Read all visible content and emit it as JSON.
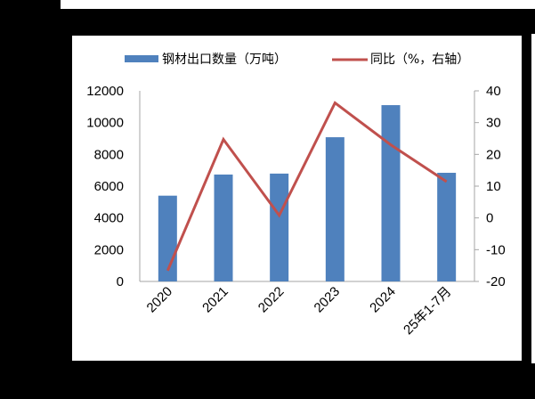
{
  "chart_data": {
    "type": "bar+line",
    "title": "",
    "categories": [
      "2020",
      "2021",
      "2022",
      "2023",
      "2024",
      "25年1-7月"
    ],
    "series": [
      {
        "name": "钢材出口数量（万吨）",
        "type": "bar",
        "axis": "left",
        "color": "#4F81BD",
        "values": [
          5400,
          6730,
          6790,
          9080,
          11100,
          6840
        ]
      },
      {
        "name": "同比（%，右轴）",
        "type": "line",
        "axis": "right",
        "color": "#C0504D",
        "values": [
          -16.6,
          24.7,
          0.8,
          36.2,
          23.0,
          11.4
        ]
      }
    ],
    "left_axis": {
      "min": 0,
      "max": 12000,
      "ticks": [
        "0",
        "2000",
        "4000",
        "6000",
        "8000",
        "10000",
        "12000"
      ]
    },
    "right_axis": {
      "min": -20,
      "max": 40,
      "ticks": [
        "-20",
        "-10",
        "0",
        "10",
        "20",
        "30",
        "40"
      ]
    },
    "xlabel": "",
    "ylabel": "",
    "legend_position": "top",
    "grid": false
  },
  "legend": {
    "bar_label": "钢材出口数量（万吨）",
    "line_label": "同比（%，右轴）"
  }
}
